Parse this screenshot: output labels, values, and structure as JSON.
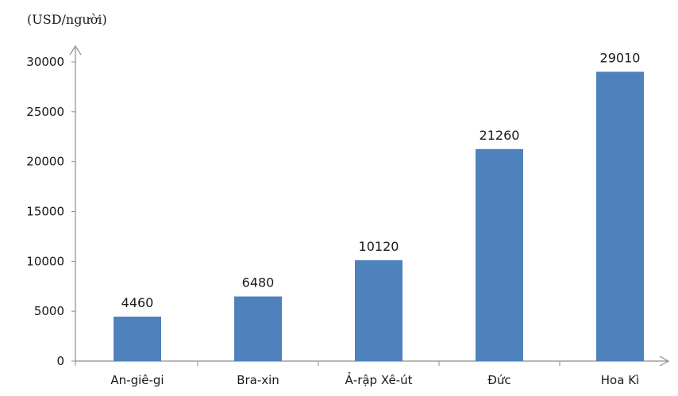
{
  "chart_data": {
    "type": "bar",
    "ylabel": "(USD/người)",
    "categories": [
      "An-giê-gi",
      "Bra-xin",
      "Ả-rập Xê-út",
      "Đức",
      "Hoa Kì"
    ],
    "values": [
      4460,
      6480,
      10120,
      21260,
      29010
    ],
    "ylim": [
      0,
      30000
    ],
    "yticks": [
      0,
      5000,
      10000,
      15000,
      20000,
      25000,
      30000
    ],
    "bar_color": "#4f81bd",
    "grid": false,
    "legend": "none"
  }
}
